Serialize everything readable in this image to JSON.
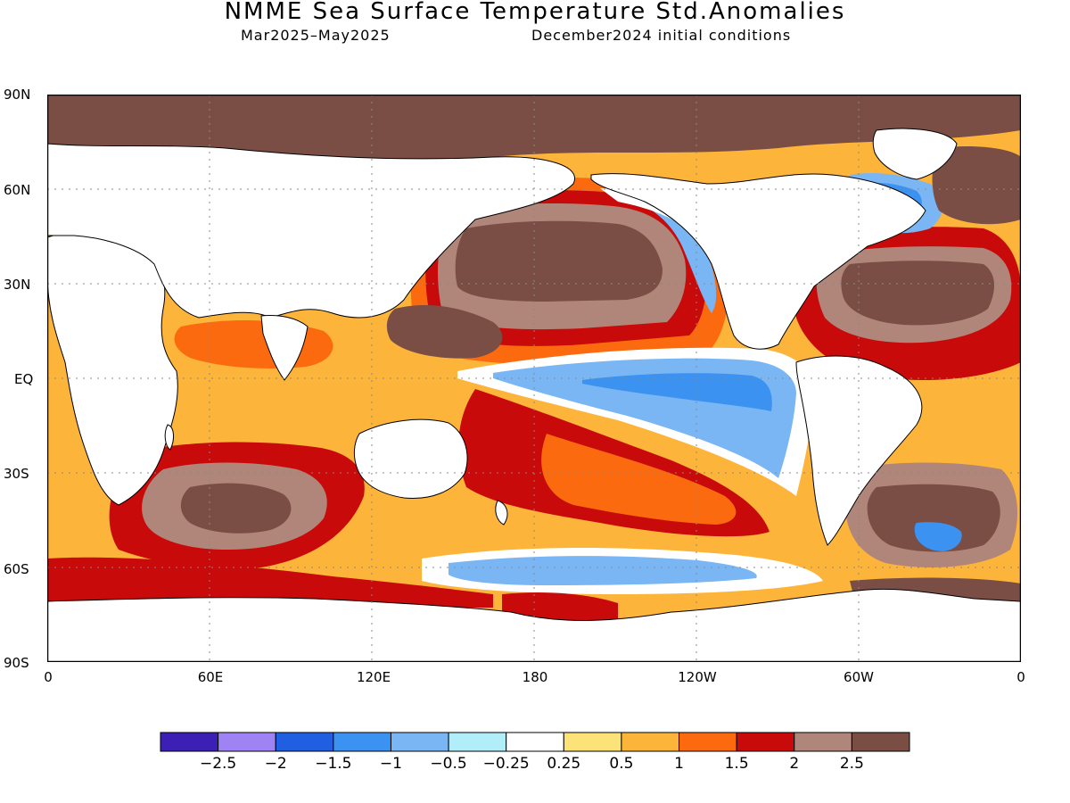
{
  "header": {
    "title": "NMME Sea Surface Temperature Std.Anomalies",
    "period": "Mar2025–May2025",
    "init": "December2024 initial conditions"
  },
  "axes": {
    "lat_labels": [
      "90N",
      "60N",
      "30N",
      "EQ",
      "30S",
      "60S",
      "90S"
    ],
    "lon_labels": [
      "0",
      "60E",
      "120E",
      "180",
      "120W",
      "60W",
      "0"
    ]
  },
  "colorbar": {
    "colors": [
      "#3c1fb4",
      "#9f83f5",
      "#1f5fe0",
      "#3c92f0",
      "#7ab6f3",
      "#b2eefa",
      "#ffffff",
      "#fde27a",
      "#fdb43a",
      "#fb6a0f",
      "#c80a0a",
      "#b0857a",
      "#7a4e44"
    ],
    "labels": [
      "−2.5",
      "−2",
      "−1.5",
      "−1",
      "−0.5",
      "−0.25",
      "0.25",
      "0.5",
      "1",
      "1.5",
      "2",
      "2.5"
    ]
  },
  "map_data": {
    "ocean_levels": [
      {
        "name": "N Pacific core",
        "level": "2.5"
      },
      {
        "name": "Arctic margin",
        "level": "2.5"
      },
      {
        "name": "Eq. Pacific cold tongue",
        "level": "-1"
      },
      {
        "name": "Labrador Sea",
        "level": "-1.5"
      },
      {
        "name": "S Indian Ocean",
        "level": "2"
      },
      {
        "name": "N Atlantic subtropics",
        "level": "2"
      }
    ]
  }
}
